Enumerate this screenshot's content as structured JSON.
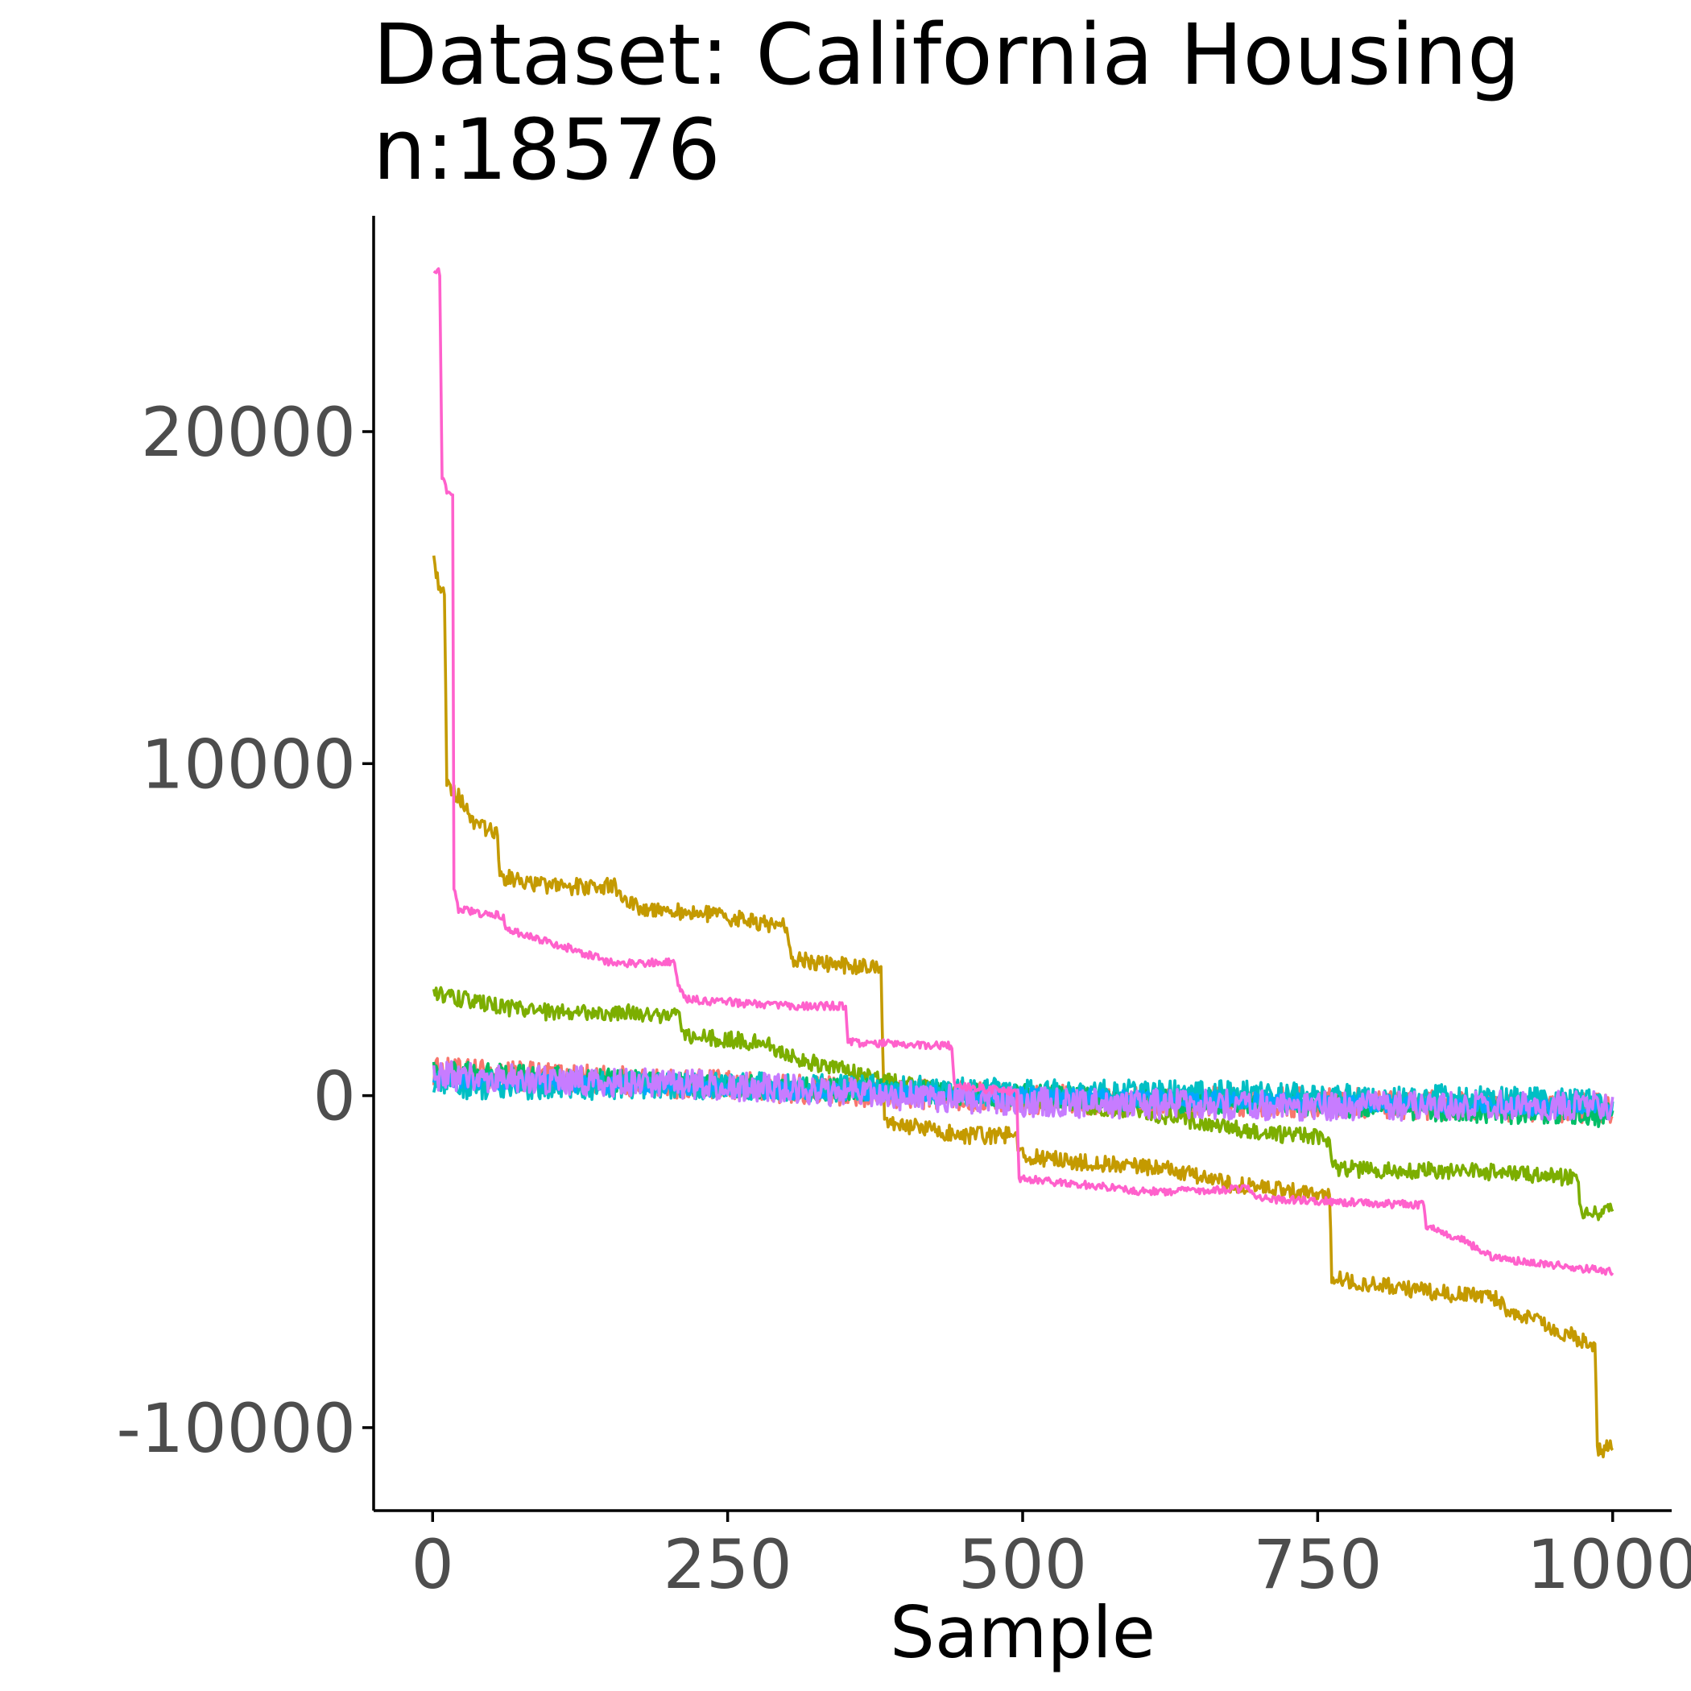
{
  "chart_data": {
    "type": "line",
    "title_lines": [
      "Dataset: California Housing",
      "n:18576"
    ],
    "xlabel": "Sample",
    "ylabel": "",
    "xlim": [
      -50,
      1050
    ],
    "ylim": [
      -12500,
      26500
    ],
    "x_ticks": [
      0,
      250,
      500,
      750,
      1000
    ],
    "x_tick_labels": [
      "0",
      "250",
      "500",
      "750",
      "1000"
    ],
    "y_ticks": [
      -10000,
      0,
      10000,
      20000
    ],
    "y_tick_labels": [
      "-10000",
      "0",
      "10000",
      "20000"
    ],
    "grid": false,
    "legend": "none",
    "x_range": [
      1,
      1000
    ],
    "series": [
      {
        "color": "#F8766D",
        "noise": 450,
        "points": [
          [
            1,
            700
          ],
          [
            250,
            300
          ],
          [
            500,
            -100
          ],
          [
            750,
            -200
          ],
          [
            1000,
            -400
          ]
        ]
      },
      {
        "color": "#C49A00",
        "noise": 250,
        "points": [
          [
            1,
            16200
          ],
          [
            5,
            15400
          ],
          [
            10,
            15300
          ],
          [
            12,
            9300
          ],
          [
            25,
            8900
          ],
          [
            37,
            8100
          ],
          [
            55,
            7900
          ],
          [
            57,
            6600
          ],
          [
            100,
            6300
          ],
          [
            155,
            6300
          ],
          [
            170,
            5700
          ],
          [
            245,
            5400
          ],
          [
            300,
            5100
          ],
          [
            305,
            4100
          ],
          [
            380,
            3800
          ],
          [
            383,
            -800
          ],
          [
            450,
            -1200
          ],
          [
            495,
            -1200
          ],
          [
            497,
            -1800
          ],
          [
            550,
            -2000
          ],
          [
            620,
            -2200
          ],
          [
            680,
            -2700
          ],
          [
            760,
            -3000
          ],
          [
            762,
            -5500
          ],
          [
            820,
            -5800
          ],
          [
            900,
            -6100
          ],
          [
            912,
            -6500
          ],
          [
            985,
            -7500
          ],
          [
            987,
            -10700
          ],
          [
            1000,
            -10600
          ]
        ]
      },
      {
        "color": "#7CAE00",
        "noise": 250,
        "points": [
          [
            1,
            3100
          ],
          [
            50,
            2700
          ],
          [
            100,
            2500
          ],
          [
            170,
            2500
          ],
          [
            210,
            2400
          ],
          [
            212,
            1800
          ],
          [
            280,
            1600
          ],
          [
            300,
            1200
          ],
          [
            320,
            1000
          ],
          [
            380,
            500
          ],
          [
            450,
            0
          ],
          [
            500,
            -100
          ],
          [
            600,
            -500
          ],
          [
            700,
            -1100
          ],
          [
            760,
            -1300
          ],
          [
            762,
            -2200
          ],
          [
            900,
            -2300
          ],
          [
            970,
            -2500
          ],
          [
            973,
            -3500
          ],
          [
            1000,
            -3500
          ]
        ]
      },
      {
        "color": "#00BE67",
        "noise": 350,
        "points": [
          [
            1,
            700
          ],
          [
            250,
            300
          ],
          [
            500,
            0
          ],
          [
            750,
            -300
          ],
          [
            1000,
            -600
          ]
        ]
      },
      {
        "color": "#00BFC4",
        "noise": 420,
        "points": [
          [
            1,
            300
          ],
          [
            250,
            300
          ],
          [
            500,
            100
          ],
          [
            750,
            0
          ],
          [
            1000,
            -200
          ]
        ]
      },
      {
        "color": "#00A9FF",
        "noise": 250,
        "points": [
          [
            1,
            500
          ],
          [
            250,
            200
          ],
          [
            500,
            0
          ],
          [
            750,
            -200
          ],
          [
            1000,
            -400
          ]
        ]
      },
      {
        "color": "#C77CFF",
        "noise": 450,
        "points": [
          [
            1,
            600
          ],
          [
            250,
            300
          ],
          [
            500,
            -200
          ],
          [
            750,
            -300
          ],
          [
            1000,
            -300
          ]
        ]
      },
      {
        "color": "#FF61CC",
        "noise": 120,
        "points": [
          [
            1,
            24800
          ],
          [
            6,
            24800
          ],
          [
            8,
            18700
          ],
          [
            12,
            18200
          ],
          [
            17,
            18200
          ],
          [
            18,
            6200
          ],
          [
            22,
            5600
          ],
          [
            60,
            5400
          ],
          [
            62,
            5000
          ],
          [
            90,
            4700
          ],
          [
            120,
            4400
          ],
          [
            150,
            4000
          ],
          [
            205,
            4000
          ],
          [
            208,
            3300
          ],
          [
            215,
            2900
          ],
          [
            300,
            2700
          ],
          [
            350,
            2700
          ],
          [
            352,
            1600
          ],
          [
            440,
            1500
          ],
          [
            442,
            300
          ],
          [
            495,
            100
          ],
          [
            497,
            -2500
          ],
          [
            560,
            -2700
          ],
          [
            600,
            -2900
          ],
          [
            690,
            -2800
          ],
          [
            700,
            -3100
          ],
          [
            840,
            -3300
          ],
          [
            842,
            -3900
          ],
          [
            870,
            -4300
          ],
          [
            900,
            -4900
          ],
          [
            1000,
            -5300
          ]
        ]
      }
    ]
  }
}
